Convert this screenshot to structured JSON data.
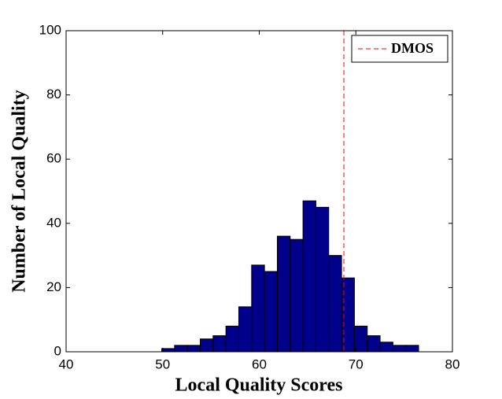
{
  "chart_data": {
    "type": "histogram",
    "xlabel": "Local Quality Scores",
    "ylabel": "Number of Local Quality",
    "bins": [
      49.9,
      51.23,
      52.56,
      53.89,
      55.22,
      56.55,
      57.88,
      59.21,
      60.54,
      61.87,
      63.2,
      64.53,
      65.86,
      67.19,
      68.52,
      69.85,
      71.18,
      72.51,
      73.84,
      75.17,
      76.5
    ],
    "counts": [
      1,
      2,
      2,
      4,
      5,
      8,
      14,
      27,
      25,
      36,
      35,
      47,
      45,
      30,
      23,
      8,
      5,
      3,
      2,
      2
    ],
    "color": "#00008b",
    "reference_line": {
      "name": "DMOS",
      "x": 68.76,
      "color": "#ff0000"
    },
    "xlim": [
      40,
      80
    ],
    "xticks": [
      40,
      50,
      60,
      70,
      80
    ],
    "ylim": [
      0,
      100
    ],
    "yticks": [
      0,
      20,
      40,
      60,
      80,
      100
    ],
    "legend": "upper right"
  }
}
